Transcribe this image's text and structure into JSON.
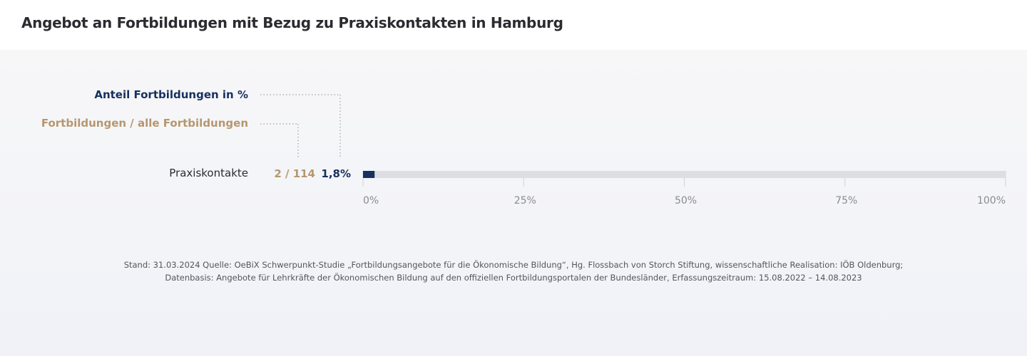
{
  "header": {
    "title": "Angebot an Fortbildungen mit Bezug zu Praxiskontakten in Hamburg"
  },
  "legend": {
    "share_label": "Anteil Fortbildungen  in %",
    "count_label": "Fortbildungen / alle Fortbildungen"
  },
  "chart_data": {
    "type": "bar",
    "orientation": "horizontal",
    "title": "Angebot an Fortbildungen mit Bezug zu Praxiskontakten in Hamburg",
    "categories": [
      "Praxiskontakte"
    ],
    "rows": [
      {
        "label": "Praxiskontakte",
        "count_text": "2 / 114",
        "count": 2,
        "total": 114,
        "share_text": "1,8%",
        "value": 1.8
      }
    ],
    "xlim": [
      0,
      100
    ],
    "ticks": [
      0,
      25,
      50,
      75,
      100
    ],
    "tick_labels": [
      "0%",
      "25%",
      "50%",
      "75%",
      "100%"
    ],
    "grid": true,
    "colors": {
      "bar": "#16305f",
      "track": "#dedee0",
      "count_text": "#b5976f",
      "share_text": "#16305f",
      "tick_text": "#8a8a92"
    }
  },
  "footnote": {
    "line1": "Stand: 31.03.2024 Quelle: OeBiX Schwerpunkt-Studie „Fortbildungsangebote für die Ökonomische Bildung“, Hg. Flossbach von Storch Stiftung, wissenschaftliche Realisation: IÖB Oldenburg;",
    "line2": "Datenbasis: Angebote für Lehrkräfte der Ökonomischen Bildung auf den offiziellen Fortbildungsportalen der Bundesländer, Erfassungszeitraum: 15.08.2022 – 14.08.2023"
  }
}
